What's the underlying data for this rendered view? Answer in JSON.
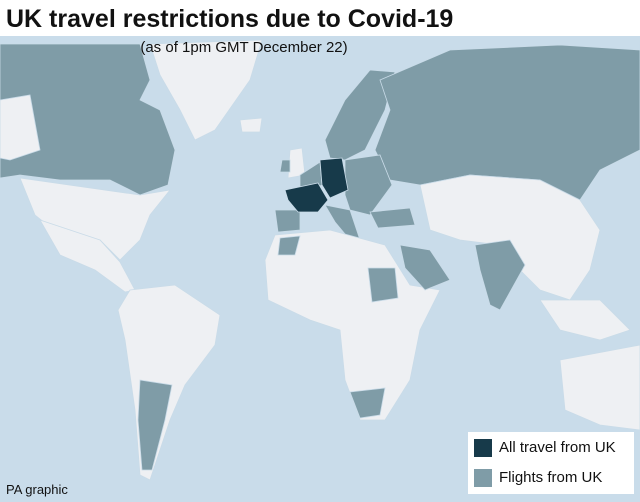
{
  "header": {
    "title": "UK travel restrictions due to Covid-19",
    "subtitle": "(as of 1pm GMT December 22)"
  },
  "legend": {
    "items": [
      {
        "label": "All travel from UK",
        "color": "#173a4a"
      },
      {
        "label": "Flights from UK",
        "color": "#7f9ca7"
      }
    ]
  },
  "footer": {
    "credit": "PA graphic"
  }
}
